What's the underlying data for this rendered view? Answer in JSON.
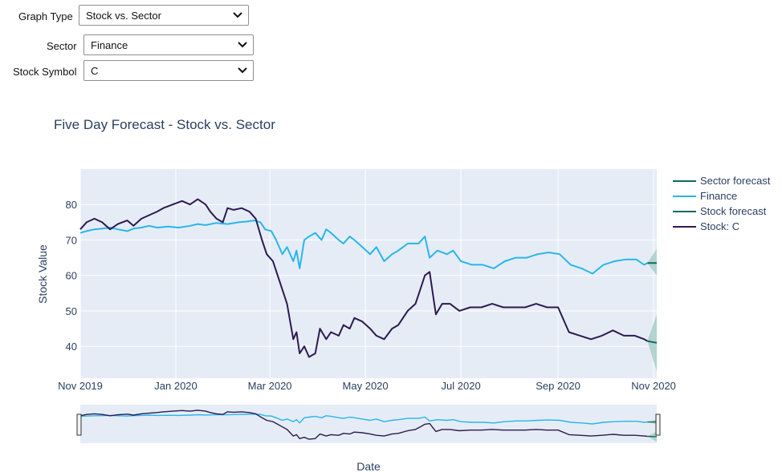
{
  "controls": {
    "graph_type": {
      "label": "Graph Type",
      "value": "Stock vs. Sector"
    },
    "sector": {
      "label": "Sector",
      "value": "Finance"
    },
    "stock_symbol": {
      "label": "Stock Symbol",
      "value": "C"
    }
  },
  "colors": {
    "plot_bg": "#e5ecf6",
    "grid": "#ffffff",
    "finance": "#29b5ea",
    "stock": "#2d1a4f",
    "forecast": "#0f6b5c",
    "forecast_band": "#a8cfc8"
  },
  "chart_data": {
    "type": "line",
    "title": "Five Day Forecast - Stock vs. Sector",
    "xlabel": "Date",
    "ylabel": "Stock Value",
    "x_range": [
      "2019-11-01",
      "2020-11-03"
    ],
    "ylim": [
      31,
      90
    ],
    "x_ticks": [
      {
        "date": "2019-11-01",
        "label": "Nov 2019"
      },
      {
        "date": "2020-01-01",
        "label": "Jan 2020"
      },
      {
        "date": "2020-03-01",
        "label": "Mar 2020"
      },
      {
        "date": "2020-05-01",
        "label": "May 2020"
      },
      {
        "date": "2020-07-01",
        "label": "Jul 2020"
      },
      {
        "date": "2020-09-01",
        "label": "Sep 2020"
      },
      {
        "date": "2020-11-01",
        "label": "Nov 2020"
      }
    ],
    "y_ticks": [
      40,
      50,
      60,
      70,
      80
    ],
    "grid": true,
    "legend_position": "right",
    "rangeslider": true,
    "series": [
      {
        "name": "Finance",
        "x": [
          "2019-11-01",
          "2019-11-05",
          "2019-11-10",
          "2019-11-15",
          "2019-11-20",
          "2019-11-25",
          "2019-12-01",
          "2019-12-05",
          "2019-12-10",
          "2019-12-15",
          "2019-12-20",
          "2019-12-27",
          "2020-01-03",
          "2020-01-10",
          "2020-01-15",
          "2020-01-20",
          "2020-01-27",
          "2020-02-03",
          "2020-02-10",
          "2020-02-15",
          "2020-02-20",
          "2020-02-24",
          "2020-02-27",
          "2020-03-02",
          "2020-03-05",
          "2020-03-09",
          "2020-03-12",
          "2020-03-16",
          "2020-03-18",
          "2020-03-20",
          "2020-03-23",
          "2020-03-26",
          "2020-03-30",
          "2020-04-03",
          "2020-04-06",
          "2020-04-09",
          "2020-04-14",
          "2020-04-17",
          "2020-04-21",
          "2020-04-24",
          "2020-04-29",
          "2020-05-04",
          "2020-05-08",
          "2020-05-13",
          "2020-05-18",
          "2020-05-22",
          "2020-05-28",
          "2020-06-04",
          "2020-06-08",
          "2020-06-11",
          "2020-06-16",
          "2020-06-22",
          "2020-06-26",
          "2020-07-01",
          "2020-07-08",
          "2020-07-15",
          "2020-07-22",
          "2020-07-29",
          "2020-08-05",
          "2020-08-12",
          "2020-08-19",
          "2020-08-26",
          "2020-09-02",
          "2020-09-09",
          "2020-09-16",
          "2020-09-23",
          "2020-09-30",
          "2020-10-07",
          "2020-10-14",
          "2020-10-21",
          "2020-10-26",
          "2020-10-28"
        ],
        "y": [
          72,
          72.5,
          73,
          73.2,
          73.5,
          73,
          72.5,
          73.2,
          73.5,
          74,
          73.5,
          73.8,
          73.5,
          74,
          74.5,
          74.2,
          74.8,
          74.5,
          75,
          75.2,
          75.5,
          75,
          73,
          72.5,
          70,
          66,
          68,
          64,
          67,
          62,
          70,
          71,
          72,
          70,
          73,
          72,
          70,
          69,
          71,
          70,
          68,
          66,
          68,
          64,
          66,
          67,
          69,
          69,
          71,
          65,
          67,
          66,
          67,
          64,
          63,
          63,
          62,
          64,
          65,
          65,
          66,
          66.5,
          66,
          63,
          62,
          60.5,
          63,
          64,
          64.5,
          64.5,
          63,
          63.5
        ]
      },
      {
        "name": "Stock: C",
        "x": [
          "2019-11-01",
          "2019-11-05",
          "2019-11-10",
          "2019-11-15",
          "2019-11-20",
          "2019-11-25",
          "2019-12-01",
          "2019-12-05",
          "2019-12-10",
          "2019-12-15",
          "2019-12-20",
          "2019-12-24",
          "2019-12-30",
          "2020-01-05",
          "2020-01-10",
          "2020-01-15",
          "2020-01-20",
          "2020-01-23",
          "2020-01-27",
          "2020-01-31",
          "2020-02-03",
          "2020-02-07",
          "2020-02-12",
          "2020-02-17",
          "2020-02-21",
          "2020-02-25",
          "2020-02-28",
          "2020-03-03",
          "2020-03-06",
          "2020-03-09",
          "2020-03-12",
          "2020-03-16",
          "2020-03-18",
          "2020-03-20",
          "2020-03-23",
          "2020-03-26",
          "2020-03-30",
          "2020-04-02",
          "2020-04-06",
          "2020-04-09",
          "2020-04-14",
          "2020-04-17",
          "2020-04-21",
          "2020-04-24",
          "2020-04-29",
          "2020-05-04",
          "2020-05-08",
          "2020-05-13",
          "2020-05-18",
          "2020-05-22",
          "2020-05-28",
          "2020-06-02",
          "2020-06-05",
          "2020-06-08",
          "2020-06-11",
          "2020-06-15",
          "2020-06-19",
          "2020-06-24",
          "2020-06-30",
          "2020-07-07",
          "2020-07-14",
          "2020-07-21",
          "2020-07-28",
          "2020-08-04",
          "2020-08-11",
          "2020-08-18",
          "2020-08-25",
          "2020-09-01",
          "2020-09-08",
          "2020-09-15",
          "2020-09-22",
          "2020-09-29",
          "2020-10-06",
          "2020-10-13",
          "2020-10-20",
          "2020-10-26",
          "2020-10-28"
        ],
        "y": [
          73,
          75,
          76,
          75,
          73,
          74.5,
          75.5,
          74,
          76,
          77,
          78,
          79,
          80,
          81,
          80,
          81.5,
          80,
          78,
          76,
          75,
          79,
          78.5,
          79,
          78,
          76,
          70,
          66,
          64,
          60,
          56,
          52,
          42,
          44,
          38,
          40,
          37,
          38,
          45,
          42,
          44,
          43,
          46,
          45,
          48,
          47,
          45,
          43,
          42,
          45,
          46,
          50,
          52,
          56,
          60,
          61,
          49,
          52,
          52,
          50,
          51,
          51,
          52,
          51,
          51,
          51,
          52,
          51,
          51,
          44,
          43,
          42,
          43,
          44.5,
          43,
          43,
          42,
          41.5
        ]
      }
    ],
    "forecasts": [
      {
        "name": "Sector forecast",
        "x": [
          "2020-10-28",
          "2020-11-03"
        ],
        "y": [
          63.5,
          63.5
        ],
        "lower": [
          63.5,
          60
        ],
        "upper": [
          63.5,
          67.5
        ]
      },
      {
        "name": "Stock forecast",
        "x": [
          "2020-10-28",
          "2020-11-03"
        ],
        "y": [
          41.5,
          41
        ],
        "lower": [
          41.5,
          33
        ],
        "upper": [
          41.5,
          49
        ]
      }
    ]
  }
}
